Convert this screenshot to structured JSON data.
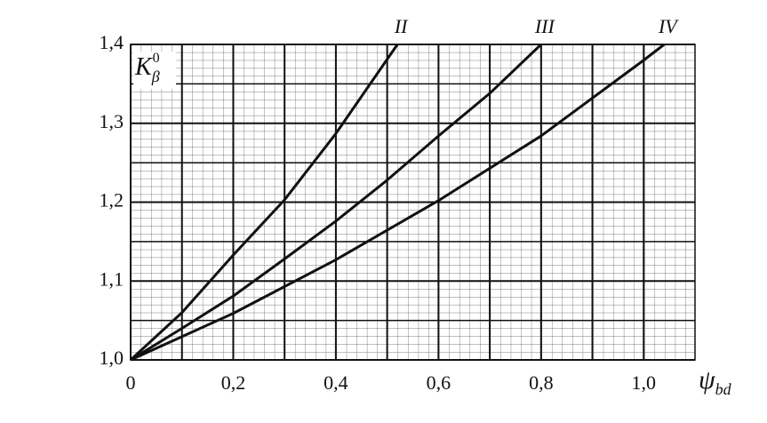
{
  "chart_data": {
    "type": "line",
    "x_label": {
      "base": "ψ",
      "sub": "bd"
    },
    "y_label": {
      "base": "K",
      "sub": "β",
      "sup": "0"
    },
    "xlim": [
      0,
      1.1
    ],
    "ylim": [
      1.0,
      1.4
    ],
    "xticks": [
      0,
      {
        "value": 0.2,
        "label": "0,2"
      },
      {
        "value": 0.4,
        "label": "0,4"
      },
      {
        "value": 0.6,
        "label": "0,6"
      },
      {
        "value": 0.8,
        "label": "0,8"
      },
      {
        "value": 1.0,
        "label": "1,0"
      }
    ],
    "yticks": [
      {
        "value": 1.0,
        "label": "1,0"
      },
      {
        "value": 1.1,
        "label": "1,1"
      },
      {
        "value": 1.2,
        "label": "1,2"
      },
      {
        "value": 1.3,
        "label": "1,3"
      },
      {
        "value": 1.4,
        "label": "1,4"
      }
    ],
    "xgrid": [
      0.1,
      0.3,
      0.5,
      0.7,
      0.9
    ],
    "ygrid": [
      1.05,
      1.15,
      1.25,
      1.35
    ],
    "grid": true,
    "color": "#111111",
    "series": [
      {
        "name": "II",
        "x": [
          0,
          0.1,
          0.2,
          0.3,
          0.4,
          0.52
        ],
        "values": [
          1.0,
          1.06,
          1.133,
          1.203,
          1.287,
          1.4
        ]
      },
      {
        "name": "III",
        "x": [
          0,
          0.1,
          0.2,
          0.3,
          0.4,
          0.5,
          0.6,
          0.7,
          0.8
        ],
        "values": [
          1.0,
          1.04,
          1.081,
          1.128,
          1.176,
          1.228,
          1.284,
          1.338,
          1.4
        ]
      },
      {
        "name": "IV",
        "x": [
          0,
          0.2,
          0.4,
          0.6,
          0.8,
          1.0,
          1.04
        ],
        "values": [
          1.0,
          1.059,
          1.127,
          1.202,
          1.284,
          1.38,
          1.4
        ]
      }
    ]
  }
}
